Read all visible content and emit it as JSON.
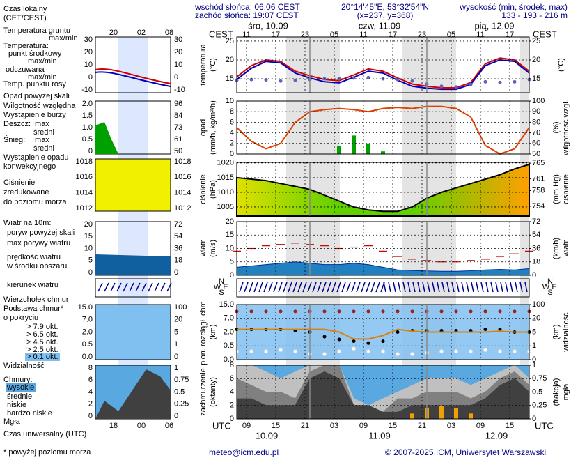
{
  "header": {
    "sunrise": "wschód słońca: 06:06 CEST",
    "sunset": "zachód słońca: 19:07 CEST",
    "coords": "20°14'45\"E, 53°32'54\"N",
    "grid": "(x=237, y=368)",
    "height_title": "wysokość (min, środek, max)",
    "height_values": "133 - 193 - 216 m",
    "days_top": [
      "śro, 10.09",
      "czw, 11.09",
      "pią, 12.09"
    ],
    "days_bottom": [
      "10.09",
      "11.09",
      "12.09"
    ],
    "local_zone": "CEST",
    "utc_zone": "UTC",
    "compass": [
      "N",
      "W",
      "E",
      "S"
    ],
    "email": "meteo@icm.edu.pl",
    "copyright": "© 2007-2025 ICM, Uniwersytet Warszawski"
  },
  "legend": {
    "items": [
      {
        "text": "Czas lokalny",
        "color": "#000000"
      },
      {
        "text": "(CET/CEST)",
        "color": "#000000"
      },
      {
        "text": "Temperatura gruntu",
        "color": "#d00000"
      },
      {
        "text": "max/min",
        "color": "#d00000"
      },
      {
        "text": "Temperatura:",
        "color": "#000000"
      },
      {
        "text": "punkt środkowy",
        "color": "#d00000"
      },
      {
        "text": "max/min",
        "color": "#c0c0c0"
      },
      {
        "text": "odczuwana",
        "color": "#0000c0"
      },
      {
        "text": "max/min",
        "color": "#c0c0c0"
      },
      {
        "text": "Temp. punktu rosy",
        "color": "#6060c0"
      },
      {
        "text": "Opad powyżej skali",
        "color": "#d00000"
      },
      {
        "text": "Wilgotność względna",
        "color": "#d00000"
      },
      {
        "text": "Wystąpienie burzy",
        "color": "#000000"
      },
      {
        "text": "Deszcz:",
        "color": "#00a000"
      },
      {
        "text": "max",
        "color": "#00a000"
      },
      {
        "text": "średni",
        "color": "#00a000"
      },
      {
        "text": "Śnieg:",
        "color": "#0000c0"
      },
      {
        "text": "max",
        "color": "#0000c0"
      },
      {
        "text": "średni",
        "color": "#0000c0"
      },
      {
        "text": "Wystąpienie opadu",
        "color": "#d00000"
      },
      {
        "text": "konwekcyjnego",
        "color": "#d00000"
      },
      {
        "text": "Ciśnienie",
        "color": "#000000"
      },
      {
        "text": "zredukowane",
        "color": "#000000"
      },
      {
        "text": "do poziomu morza",
        "color": "#000000"
      },
      {
        "text": "Wiatr na 10m:",
        "color": "#000000"
      },
      {
        "text": "poryw powyżej skali",
        "color": "#d00000"
      },
      {
        "text": "max porywy wiatru",
        "color": "#d00000"
      },
      {
        "text": "prędkość wiatru",
        "color": "#0000a0"
      },
      {
        "text": "w środku obszaru",
        "color": "#0000a0"
      },
      {
        "text": "kierunek wiatru",
        "color": "#0000a0"
      },
      {
        "text": "Wierzchołek chmur",
        "color": "#a02020"
      },
      {
        "text": "Podstawa chmur*",
        "color": "#000000"
      },
      {
        "text": "o pokryciu",
        "color": "#000000"
      },
      {
        "text": "> 7.9 okt.",
        "color": "#000000"
      },
      {
        "text": "> 6.5 okt.",
        "color": "#606060"
      },
      {
        "text": "> 4.5 okt.",
        "color": "#a0a0a0"
      },
      {
        "text": "> 2.5 okt.",
        "color": "#e0e0e0"
      },
      {
        "text": "> 0.1 okt.",
        "color": "#ffffff"
      },
      {
        "text": "Widzialność",
        "color": "#e08000"
      },
      {
        "text": "Chmury:",
        "color": "#000000"
      },
      {
        "text": "wysokie",
        "color": "#ffffff"
      },
      {
        "text": "średnie",
        "color": "#d0d0d0"
      },
      {
        "text": "niskie",
        "color": "#000000"
      },
      {
        "text": "bardzo niskie",
        "color": "#000000"
      },
      {
        "text": "Mgła",
        "color": "#e08000"
      },
      {
        "text": "Czas uniwersalny (UTC)",
        "color": "#000000"
      },
      {
        "text": "* powyżej poziomu morza",
        "color": "#000000"
      }
    ],
    "mini_top": [
      "20",
      "02",
      "08"
    ],
    "mini_bottom": [
      "18",
      "00",
      "06"
    ],
    "mini_panels": [
      {
        "left": [
          "30",
          "20",
          "10",
          "0",
          "-10"
        ],
        "right": [
          "30",
          "20",
          "10",
          "0",
          "-10"
        ]
      },
      {
        "left": [
          "2.0",
          "1.5",
          "1.0",
          "0.5",
          "0"
        ],
        "right": [
          "96",
          "84",
          "73",
          "61",
          "50"
        ]
      },
      {
        "left": [
          "1018",
          "1016",
          "1014",
          "1012"
        ],
        "right": [
          "1018",
          "1016",
          "1014",
          "1012"
        ]
      },
      {
        "left": [
          "20",
          "15",
          "10",
          "5",
          "0"
        ],
        "right": [
          "72",
          "54",
          "36",
          "18",
          "0"
        ]
      },
      {
        "left": [
          "15.0",
          "7.0",
          "2.0",
          "0.5",
          "0.0"
        ],
        "right": [
          "100",
          "20",
          "5",
          "1",
          "0"
        ]
      },
      {
        "left": [
          "8",
          "6",
          "4",
          "2",
          "0"
        ],
        "right": [
          "1",
          "0.75",
          "0.5",
          "0.25",
          "0"
        ]
      }
    ]
  },
  "chart_data": [
    {
      "type": "line",
      "ylabel": [
        "temperatura",
        "(°C)"
      ],
      "y2label": [
        "(°C)"
      ],
      "x": [
        9,
        12,
        15,
        18,
        21,
        24,
        27,
        30,
        33,
        36,
        39,
        42,
        45,
        48,
        51,
        54,
        57,
        60,
        63,
        66,
        69
      ],
      "xlim": [
        9,
        69
      ],
      "xticks": [
        {
          "value": 11,
          "label": "11"
        },
        {
          "value": 17,
          "label": "17"
        },
        {
          "value": 23,
          "label": "23"
        },
        {
          "value": 29,
          "label": "05"
        },
        {
          "value": 35,
          "label": "11"
        },
        {
          "value": 41,
          "label": "17"
        },
        {
          "value": 47,
          "label": "23"
        },
        {
          "value": 53,
          "label": "05"
        },
        {
          "value": 59,
          "label": "11"
        },
        {
          "value": 65,
          "label": "17"
        }
      ],
      "ylim": [
        11.3,
        26.1
      ],
      "yticks": [
        15,
        20,
        25
      ],
      "y2lim": [
        11.3,
        26.1
      ],
      "y2ticks": [
        15,
        20,
        25
      ],
      "series": [
        {
          "color": "#d00000",
          "mark": "line",
          "values": [
            15.5,
            18.5,
            20,
            19.6,
            17,
            15.8,
            14.8,
            14.5,
            16,
            17.6,
            17,
            15.2,
            13.6,
            13,
            12.6,
            12.6,
            14,
            19,
            20.5,
            20,
            17
          ]
        },
        {
          "color": "#0000c0",
          "mark": "line",
          "values": [
            14.8,
            17.8,
            19.6,
            19.2,
            16.5,
            15.2,
            14.2,
            13.9,
            15.4,
            17,
            16.5,
            14.6,
            13,
            12.5,
            12.2,
            12.2,
            13.5,
            18.5,
            20,
            19.6,
            16.5
          ]
        },
        {
          "color": "#6060c0",
          "mark": "dots",
          "values": [
            14.6,
            14.8,
            14.7,
            14.4,
            14.6,
            14.8,
            15,
            15,
            15.2,
            15.3,
            15,
            14.8,
            14.4,
            13.6,
            13,
            12.8,
            13.5,
            14.2,
            14,
            14.2,
            14.8
          ]
        }
      ]
    },
    {
      "type": "line",
      "ylabel": [
        "opad",
        "(mm/h, kg/m²/h)"
      ],
      "y2label": [
        "(%)",
        "wilgotność wzgl."
      ],
      "x": [
        9,
        12,
        15,
        18,
        21,
        24,
        27,
        30,
        33,
        36,
        39,
        42,
        45,
        48,
        51,
        54,
        57,
        60,
        63,
        66,
        69
      ],
      "xlim": [
        9,
        69
      ],
      "ylim": [
        0,
        10
      ],
      "yticks": [
        0,
        2,
        4,
        6,
        8,
        10
      ],
      "y2lim": [
        50,
        100
      ],
      "y2ticks": [
        50,
        60,
        70,
        80,
        90,
        100
      ],
      "series": [
        {
          "color": "#00a000",
          "mark": "bars",
          "values": [
            0,
            0,
            0,
            0,
            0,
            0,
            0,
            1.5,
            3.5,
            2,
            0.5,
            0,
            0,
            0,
            0,
            0,
            0,
            0,
            0,
            0,
            0
          ]
        },
        {
          "color": "#e04000",
          "mark": "line",
          "axis": "y2",
          "values": [
            75,
            62,
            55,
            60,
            80,
            90,
            92,
            93,
            92,
            90,
            93,
            94,
            93,
            95,
            95,
            93,
            85,
            58,
            50,
            55,
            75
          ]
        }
      ]
    },
    {
      "type": "line",
      "ylabel": [
        "ciśnienie",
        "(hPa)"
      ],
      "y2label": [
        "(mm Hg)",
        "ciśnienie"
      ],
      "x": [
        9,
        12,
        15,
        18,
        21,
        24,
        27,
        30,
        33,
        36,
        39,
        42,
        45,
        48,
        51,
        54,
        57,
        60,
        63,
        66,
        69
      ],
      "xlim": [
        9,
        69
      ],
      "ylim": [
        1001.9,
        1020.2
      ],
      "yticks": [
        1005,
        1010,
        1015,
        1020
      ],
      "y2lim": [
        751.5,
        765.2
      ],
      "y2ticks": [
        754,
        758,
        761,
        765
      ],
      "series": [
        {
          "color": "#000000",
          "fill": "#c8e000",
          "mark": "area",
          "values": [
            1015,
            1014.5,
            1014,
            1013,
            1012,
            1011,
            1009,
            1007,
            1005,
            1004,
            1003.5,
            1003.5,
            1005,
            1008,
            1010,
            1011.5,
            1013,
            1014.5,
            1016,
            1018,
            1019.5
          ]
        }
      ]
    },
    {
      "type": "line",
      "ylabel": [
        "wiatr",
        "(m/s)"
      ],
      "y2label": [
        "(km/h)",
        "wiatr"
      ],
      "x": [
        9,
        12,
        15,
        18,
        21,
        24,
        27,
        30,
        33,
        36,
        39,
        42,
        45,
        48,
        51,
        54,
        57,
        60,
        63,
        66,
        69
      ],
      "xlim": [
        9,
        69
      ],
      "ylim": [
        0,
        20
      ],
      "yticks": [
        0,
        5,
        10,
        15,
        20
      ],
      "y2lim": [
        0,
        72
      ],
      "y2ticks": [
        0,
        18,
        36,
        54,
        72
      ],
      "series": [
        {
          "color": "#0030a0",
          "fill": "#2080c0",
          "mark": "area",
          "values": [
            3,
            3.5,
            4,
            4.5,
            5,
            4.5,
            4,
            4,
            4.5,
            4,
            3,
            2,
            1.8,
            1.6,
            1.5,
            1.5,
            1.7,
            2,
            2.2,
            2,
            2.5
          ]
        },
        {
          "color": "#c00000",
          "mark": "dash",
          "values": [
            9,
            10,
            11,
            11.5,
            12,
            11.5,
            11,
            10,
            10.5,
            11,
            9,
            7,
            6,
            5.5,
            5,
            5,
            5.5,
            6,
            7,
            8,
            9
          ]
        }
      ]
    },
    {
      "type": "line",
      "ylabel": [
        "pion. rozciągł. chm.",
        "(km)"
      ],
      "y2label": [
        "(km)",
        "widzialność"
      ],
      "x": [
        9,
        12,
        15,
        18,
        21,
        24,
        27,
        30,
        33,
        36,
        39,
        42,
        45,
        48,
        51,
        54,
        57,
        60,
        63,
        66,
        69
      ],
      "xlim": [
        9,
        69
      ],
      "yticks": [
        {
          "value": 0,
          "label": "0.0"
        },
        {
          "value": 0.5,
          "label": "0.5"
        },
        {
          "value": 2,
          "label": "2.0"
        },
        {
          "value": 7,
          "label": "7.0"
        },
        {
          "value": 15,
          "label": "15.0"
        }
      ],
      "y2ticks": [
        0,
        1,
        5,
        20,
        100
      ],
      "series": [
        {
          "color": "#a02020",
          "mark": "dots",
          "values": [
            11,
            11,
            11,
            11,
            11,
            11,
            11,
            11,
            11,
            11,
            11,
            11,
            11,
            11,
            11,
            11,
            11,
            11,
            11,
            11,
            11
          ]
        },
        {
          "color": "#000000",
          "mark": "dots",
          "values": [
            3,
            3,
            3,
            3,
            2.5,
            2,
            1.5,
            1.2,
            1,
            0.8,
            1,
            2,
            2.5,
            2.5,
            2.5,
            2.5,
            2.5,
            3,
            3,
            2,
            2
          ]
        },
        {
          "color": "#ffffff",
          "mark": "dots",
          "values": [
            0.3,
            0.3,
            0.3,
            0.35,
            0.3,
            0.2,
            0.2,
            0.3,
            0.4,
            0.3,
            0.3,
            0.2,
            0.2,
            0.25,
            0.3,
            0.3,
            0.3,
            0.35,
            0.3,
            0.3,
            0.3
          ]
        },
        {
          "color": "#e08000",
          "mark": "line",
          "axis": "y2",
          "values": [
            8,
            8,
            8,
            8,
            8,
            8,
            8,
            5,
            3,
            3,
            4,
            8,
            6,
            5,
            5,
            5,
            5,
            5,
            6,
            5,
            5
          ]
        }
      ]
    },
    {
      "type": "line",
      "ylabel": [
        "zachmurzenie",
        "(oktanty)"
      ],
      "y2label": [
        "(frakcja)",
        "mgła"
      ],
      "x": [
        9,
        12,
        15,
        18,
        21,
        24,
        27,
        30,
        33,
        36,
        39,
        42,
        45,
        48,
        51,
        54,
        57,
        60,
        63,
        66,
        69
      ],
      "xlim": [
        9,
        69
      ],
      "xticks": [
        {
          "value": 11,
          "label": "09"
        },
        {
          "value": 17,
          "label": "15"
        },
        {
          "value": 23,
          "label": "21"
        },
        {
          "value": 29,
          "label": "03"
        },
        {
          "value": 35,
          "label": "09"
        },
        {
          "value": 41,
          "label": "15"
        },
        {
          "value": 47,
          "label": "21"
        },
        {
          "value": 53,
          "label": "03"
        },
        {
          "value": 59,
          "label": "09"
        },
        {
          "value": 65,
          "label": "15"
        }
      ],
      "ylim": [
        0,
        8
      ],
      "yticks": [
        0,
        2,
        4,
        6,
        8
      ],
      "y2lim": [
        0,
        1
      ],
      "y2ticks": [
        0,
        0.25,
        0.5,
        0.75,
        1
      ],
      "series": [
        {
          "color": "#c0c0c0",
          "fill": "#c0c0c0",
          "mark": "area",
          "values": [
            8,
            8,
            7,
            6,
            7,
            8,
            8,
            8,
            3,
            2,
            3,
            4,
            5,
            6,
            6,
            6,
            5,
            6,
            7,
            8,
            6
          ]
        },
        {
          "color": "#808080",
          "fill": "#808080",
          "mark": "area",
          "values": [
            6,
            5,
            4,
            4,
            3,
            7,
            8,
            8,
            2,
            2,
            1,
            3,
            3,
            4,
            4,
            4,
            3,
            4,
            6,
            7,
            5
          ]
        },
        {
          "color": "#404040",
          "fill": "#404040",
          "mark": "area",
          "values": [
            3,
            3,
            2,
            2,
            2,
            6,
            7,
            6,
            2,
            2,
            1,
            1,
            2,
            2,
            2,
            2,
            2,
            3,
            5,
            6,
            4
          ]
        },
        {
          "color": "#f0a000",
          "mark": "bars",
          "axis": "y2",
          "values": [
            0,
            0,
            0,
            0,
            0,
            0,
            0,
            0,
            0,
            0,
            0,
            0,
            0.1,
            0.2,
            0.25,
            0.2,
            0.1,
            0,
            0,
            0,
            0
          ]
        }
      ]
    }
  ]
}
